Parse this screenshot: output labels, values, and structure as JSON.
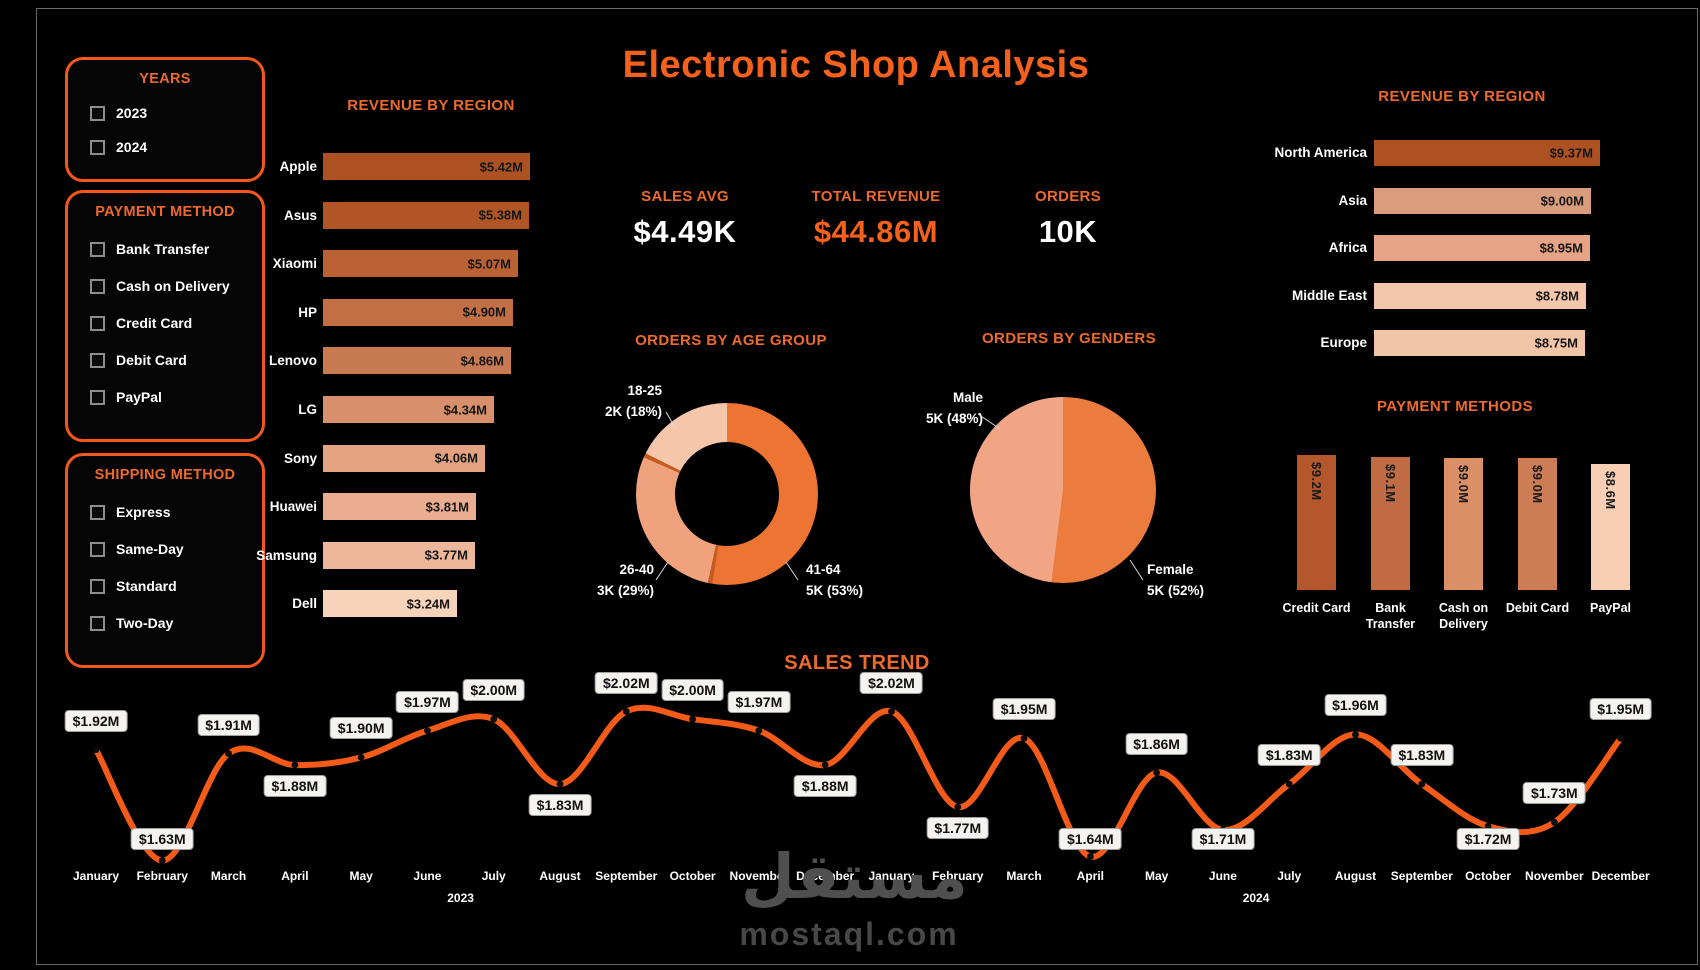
{
  "title": "Electronic Shop Analysis",
  "accent_color": "#F4611C",
  "watermark": {
    "arabic": "مستقل",
    "latin": "mostaql.com"
  },
  "sidebar": {
    "years": {
      "title": "YEARS",
      "options": [
        {
          "label": "2023",
          "checked": false
        },
        {
          "label": "2024",
          "checked": false
        }
      ]
    },
    "payment": {
      "title": "PAYMENT METHOD",
      "options": [
        {
          "label": "Bank Transfer",
          "checked": false
        },
        {
          "label": "Cash on Delivery",
          "checked": false
        },
        {
          "label": "Credit Card",
          "checked": false
        },
        {
          "label": "Debit Card",
          "checked": false
        },
        {
          "label": "PayPal",
          "checked": false
        }
      ]
    },
    "shipping": {
      "title": "SHIPPING METHOD",
      "options": [
        {
          "label": "Express",
          "checked": false
        },
        {
          "label": "Same-Day",
          "checked": false
        },
        {
          "label": "Standard",
          "checked": false
        },
        {
          "label": "Two-Day",
          "checked": false
        }
      ]
    }
  },
  "kpis": [
    {
      "label": "SALES AVG",
      "value": "$4.49K",
      "value_color": "#FFFFFF"
    },
    {
      "label": "TOTAL REVENUE",
      "value": "$44.86M",
      "value_color": "#F4611C"
    },
    {
      "label": "ORDERS",
      "value": "10K",
      "value_color": "#FFFFFF"
    }
  ],
  "chart_data": [
    {
      "id": "revenue_by_brand",
      "type": "bar",
      "orientation": "horizontal",
      "title": "REVENUE BY REGION",
      "categories": [
        "Apple",
        "Asus",
        "Xiaomi",
        "HP",
        "Lenovo",
        "LG",
        "Sony",
        "Huawei",
        "Samsung",
        "Dell"
      ],
      "values": [
        5.42,
        5.38,
        5.07,
        4.9,
        4.86,
        4.34,
        4.06,
        3.81,
        3.77,
        3.24
      ],
      "value_labels": [
        "$5.42M",
        "$5.38M",
        "$5.07M",
        "$4.90M",
        "$4.86M",
        "$4.34M",
        "$4.06M",
        "$3.81M",
        "$3.77M",
        "$3.24M"
      ],
      "colors": [
        "#AC5122",
        "#B05526",
        "#BB6234",
        "#C26F46",
        "#C87A53",
        "#D78F6C",
        "#E3A280",
        "#EAAD90",
        "#EFB79A",
        "#F8D3BB"
      ],
      "dotted": [
        1,
        3,
        7,
        8
      ]
    },
    {
      "id": "orders_by_age",
      "type": "donut",
      "title": "ORDERS BY AGE GROUP",
      "slices": [
        {
          "label": "41-64",
          "value_label": "5K (53%)",
          "pct": 53,
          "color": "#ED7433"
        },
        {
          "label": "26-40",
          "value_label": "3K (29%)",
          "pct": 29,
          "color": "#F0A27D"
        },
        {
          "label": "18-25",
          "value_label": "2K (18%)",
          "pct": 18,
          "color": "#F6C6AA"
        }
      ],
      "separator_color": "#C65B22"
    },
    {
      "id": "orders_by_gender",
      "type": "pie",
      "title": "ORDERS BY GENDERS",
      "slices": [
        {
          "label": "Female",
          "value_label": "5K (52%)",
          "pct": 52,
          "color": "#EC7B3E"
        },
        {
          "label": "Male",
          "value_label": "5K (48%)",
          "pct": 48,
          "color": "#F1A585"
        }
      ]
    },
    {
      "id": "revenue_by_region",
      "type": "bar",
      "orientation": "horizontal",
      "title": "REVENUE BY REGION",
      "categories": [
        "North America",
        "Asia",
        "Africa",
        "Middle East",
        "Europe"
      ],
      "values": [
        9.37,
        9.0,
        8.95,
        8.78,
        8.75
      ],
      "value_labels": [
        "$9.37M",
        "$9.00M",
        "$8.95M",
        "$8.78M",
        "$8.75M"
      ],
      "colors": [
        "#AD5122",
        "#D99C7C",
        "#E6A385",
        "#F4C7AC",
        "#F3C5A8"
      ],
      "dotted": [
        1,
        4
      ]
    },
    {
      "id": "payment_methods",
      "type": "column",
      "title": "PAYMENT METHODS",
      "categories": [
        "Credit Card",
        "Bank Transfer",
        "Cash on Delivery",
        "Debit Card",
        "PayPal"
      ],
      "values": [
        9.2,
        9.1,
        9.0,
        9.0,
        8.6
      ],
      "value_labels": [
        "$9.2M",
        "$9.1M",
        "$9.0M",
        "$9.0M",
        "$8.6M"
      ],
      "colors": [
        "#B5572C",
        "#C16B44",
        "#DA8F67",
        "#CD7D56",
        "#F8CFB5"
      ],
      "dotted": [
        2
      ]
    },
    {
      "id": "sales_trend",
      "type": "line",
      "title": "SALES TREND",
      "months": [
        "January",
        "February",
        "March",
        "April",
        "May",
        "June",
        "July",
        "August",
        "September",
        "October",
        "November",
        "December"
      ],
      "years": [
        "2023",
        "2024"
      ],
      "values": [
        1.92,
        1.63,
        1.91,
        1.88,
        1.9,
        1.97,
        2.0,
        1.83,
        2.02,
        2.0,
        1.97,
        1.88,
        2.02,
        1.77,
        1.95,
        1.64,
        1.86,
        1.71,
        1.83,
        1.96,
        1.83,
        1.72,
        1.73,
        1.95
      ],
      "value_labels": [
        "$1.92M",
        "$1.63M",
        "$1.91M",
        "$1.88M",
        "$1.90M",
        "$1.97M",
        "$2.00M",
        "$1.83M",
        "$2.02M",
        "$2.00M",
        "$1.97M",
        "$1.88M",
        "$2.02M",
        "$1.77M",
        "$1.95M",
        "$1.64M",
        "$1.86M",
        "$1.71M",
        "$1.83M",
        "$1.96M",
        "$1.83M",
        "$1.72M",
        "$1.73M",
        "$1.95M"
      ],
      "line_color": "#F45A18"
    }
  ]
}
